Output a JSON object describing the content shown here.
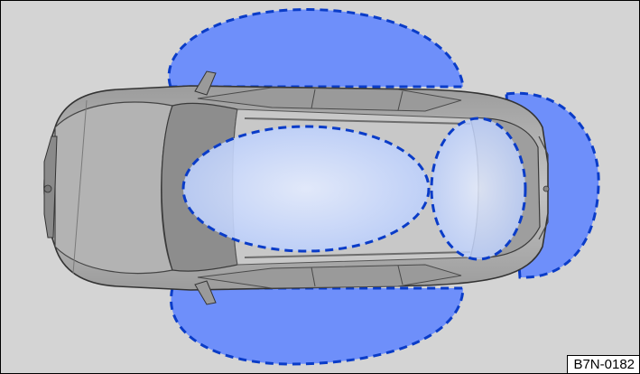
{
  "figure_code": "B7N-0182",
  "colors": {
    "background": "#d4d4d4",
    "zone_fill": "#6e8ffa",
    "zone_outline": "#0a3cc8",
    "interior_fill": "#cfdcff",
    "car_body": "#a9a9a9",
    "glass": "#8d8d8d"
  },
  "zones": [
    {
      "name": "left-side-exterior-zone"
    },
    {
      "name": "right-side-exterior-zone"
    },
    {
      "name": "rear-exterior-zone"
    },
    {
      "name": "front-interior-zone"
    },
    {
      "name": "rear-interior-zone"
    }
  ]
}
